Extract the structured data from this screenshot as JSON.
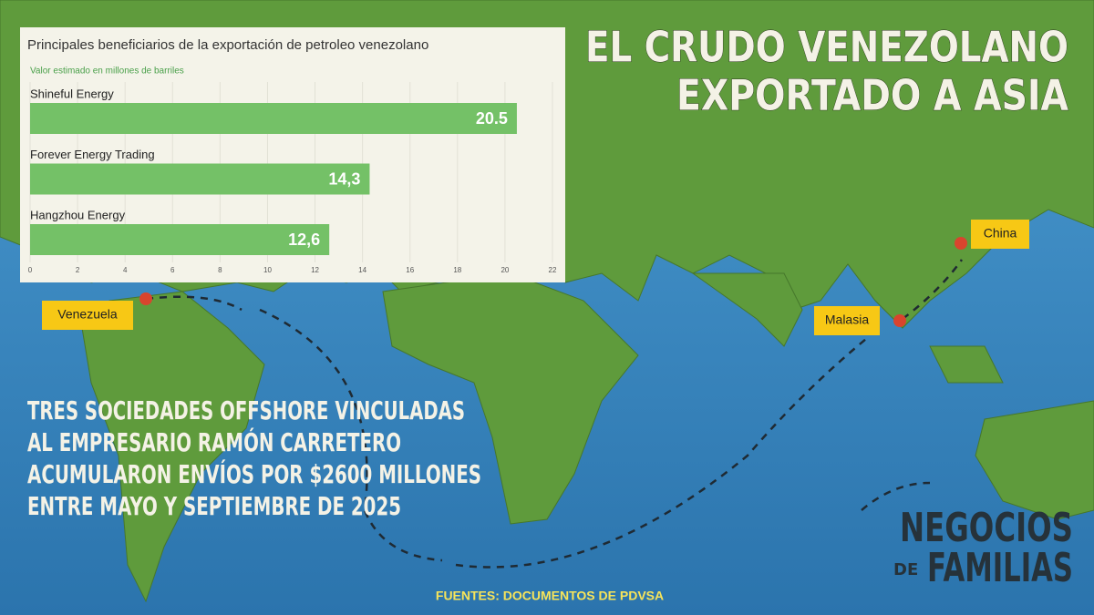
{
  "chart_data": {
    "type": "bar",
    "orientation": "horizontal",
    "title": "Principales beneficiarios de la exportación de petroleo venezolano",
    "subtitle": "Valor estimado en millones de barriles",
    "categories": [
      "Shineful Energy",
      "Forever Energy Trading",
      "Hangzhou Energy"
    ],
    "values": [
      20.5,
      14.3,
      12.6
    ],
    "value_labels": [
      "20.5",
      "14,3",
      "12,6"
    ],
    "color": "#74c167",
    "xlim": [
      0,
      22
    ],
    "xticks": [
      0,
      2,
      4,
      6,
      8,
      10,
      12,
      14,
      16,
      18,
      20,
      22
    ],
    "grid": true
  },
  "headline": {
    "lines": [
      "EL CRUDO VENEZOLANO",
      "EXPORTADO A ASIA"
    ]
  },
  "body": {
    "lines": [
      "TRES SOCIEDADES OFFSHORE VINCULADAS",
      "AL EMPRESARIO RAMÓN CARRETERO",
      "ACUMULARON ENVÍOS POR $2600 MILLONES",
      "ENTRE MAYO Y SEPTIEMBRE DE 2025"
    ]
  },
  "places": [
    "Venezuela",
    "Malasia",
    "China"
  ],
  "brand": {
    "line1": "NEGOCIOS",
    "de": "DE",
    "line2": "FAMILIAS"
  },
  "source": "FUENTES: DOCUMENTOS  DE PDVSA"
}
